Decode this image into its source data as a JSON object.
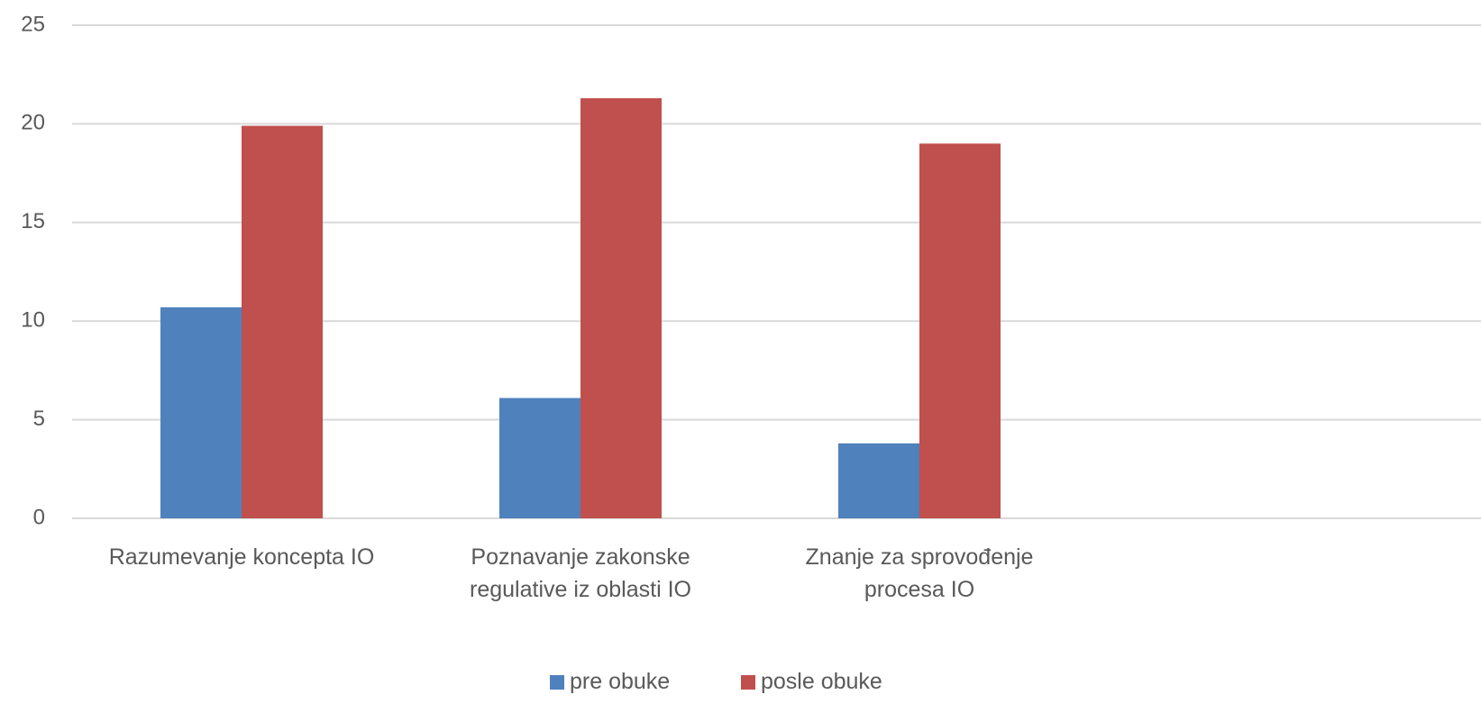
{
  "chart_data": {
    "type": "bar",
    "categories": [
      "Razumevanje koncepta IO",
      "Poznavanje zakonske regulative iz oblasti IO",
      "Znanje za sprovođenje procesa IO",
      null
    ],
    "series": [
      {
        "name": "pre obuke",
        "color": "#4f81bd",
        "values": [
          10.7,
          6.1,
          3.8,
          null
        ]
      },
      {
        "name": "posle obuke",
        "color": "#c0504d",
        "values": [
          19.9,
          21.3,
          19.0,
          null
        ]
      }
    ],
    "ylim": [
      0,
      25
    ],
    "yticks": [
      0,
      5,
      10,
      15,
      20,
      25
    ],
    "grid": true,
    "legend": "bottom"
  }
}
